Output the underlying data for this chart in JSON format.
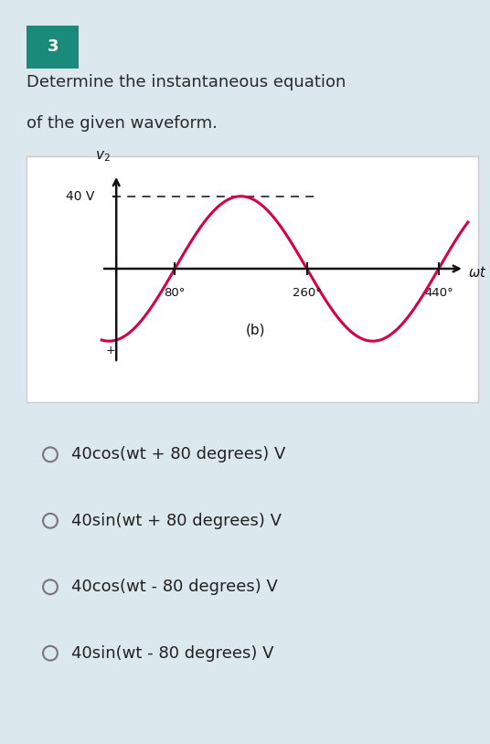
{
  "question_number": "3",
  "question_number_bg": "#1a8a7a",
  "question_text_line1": "Determine the instantaneous equation",
  "question_text_line2": "of the given waveform.",
  "top_bg_color": "#dbe8ed",
  "plot_bg_color": "#ffffff",
  "wave_color": "#d4004a",
  "wave_amplitude": 40,
  "wave_zero_crossing_deg": 80,
  "x_label_ticks": [
    80,
    260,
    440
  ],
  "x_axis_label": "wt",
  "y_axis_label": "v2",
  "y_value_label": "40 V",
  "sub_label": "(b)",
  "choices": [
    "40cos(wt + 80 degrees) V",
    "40sin(wt + 80 degrees) V",
    "40cos(wt - 80 degrees) V",
    "40sin(wt - 80 degrees) V"
  ],
  "choice_bg_color": "#efefef",
  "choice_text_color": "#222222",
  "choice_fontsize": 13,
  "dashed_color": "#333333",
  "axis_color": "#111111",
  "border_color": "#cccccc"
}
